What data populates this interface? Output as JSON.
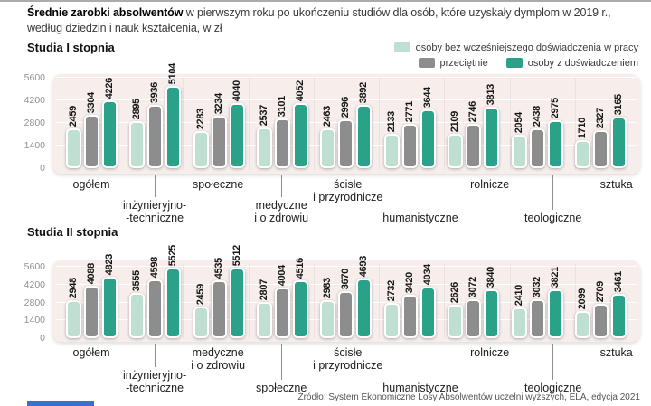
{
  "page": {
    "title_bold": "Średnie zarobki absolwentów",
    "title_rest": " w pierwszym roku po ukończeniu studiów dla osób, które uzyskały dymplom w 2019 r., według dziedzin i nauk kształcenia, w zł",
    "source": "Źródło: System Ekonomiczne Losy Absolwentów uczelni wyższych, ELA, edycja 2021"
  },
  "legend": [
    {
      "label": "osoby bez wcześniejszego doświadczenia w pracy",
      "color": "#bfdfd2"
    },
    {
      "label": "przeciętnie",
      "color": "#8d8d8d"
    },
    {
      "label": "osoby z doświadczeniem",
      "color": "#2aa189"
    }
  ],
  "colors": {
    "panel_background": "#f7eeec",
    "value_label": "#161616",
    "axis_text": "#919191"
  },
  "chart_data": [
    {
      "type": "bar",
      "title": "Studia I stopnia",
      "ylim": [
        0,
        5600
      ],
      "yticks": [
        0,
        1400,
        2800,
        4200,
        5600
      ],
      "grid": true,
      "legend_position": "top-right",
      "categories": [
        "ogółem",
        "inżynieryjno--techniczne",
        "społeczne",
        "medyczne i o zdrowiu",
        "ścisłe i przyrodnicze",
        "humanistyczne",
        "rolnicze",
        "teologiczne",
        "sztuka"
      ],
      "category_lines": [
        [
          "ogółem"
        ],
        [
          "inżynieryjno-",
          "-techniczne"
        ],
        [
          "społeczne"
        ],
        [
          "medyczne",
          "i o zdrowiu"
        ],
        [
          "ścisłe",
          "i przyrodnicze"
        ],
        [
          "humanistyczne"
        ],
        [
          "rolnicze"
        ],
        [
          "teologiczne"
        ],
        [
          "sztuka"
        ]
      ],
      "series": [
        {
          "name": "osoby bez wcześniejszego doświadczenia w pracy",
          "values": [
            2459,
            2895,
            2283,
            2537,
            2463,
            2133,
            2109,
            2054,
            1710
          ]
        },
        {
          "name": "przeciętnie",
          "values": [
            3304,
            3936,
            3234,
            3101,
            2996,
            2771,
            2746,
            2438,
            2327
          ]
        },
        {
          "name": "osoby z doświadczeniem",
          "values": [
            4226,
            5104,
            4040,
            4052,
            3892,
            3644,
            3813,
            2975,
            3165
          ]
        }
      ]
    },
    {
      "type": "bar",
      "title": "Studia II stopnia",
      "ylim": [
        0,
        5600
      ],
      "yticks": [
        0,
        1400,
        2800,
        4200,
        5600
      ],
      "grid": true,
      "legend_position": "top-right",
      "categories": [
        "ogółem",
        "inżynieryjno--techniczne",
        "medyczne i o zdrowiu",
        "społeczne",
        "ścisłe i przyrodnicze",
        "humanistyczne",
        "rolnicze",
        "teologiczne",
        "sztuka"
      ],
      "category_lines": [
        [
          "ogółem"
        ],
        [
          "inżynieryjno-",
          "-techniczne"
        ],
        [
          "medyczne",
          "i o zdrowiu"
        ],
        [
          "społeczne"
        ],
        [
          "ścisłe",
          "i przyrodnicze"
        ],
        [
          "humanistyczne"
        ],
        [
          "rolnicze"
        ],
        [
          "teologiczne"
        ],
        [
          "sztuka"
        ]
      ],
      "series": [
        {
          "name": "osoby bez wcześniejszego doświadczenia w pracy",
          "values": [
            2948,
            3555,
            2459,
            2807,
            2983,
            2732,
            2626,
            2410,
            2099
          ]
        },
        {
          "name": "przeciętnie",
          "values": [
            4088,
            4598,
            4535,
            4004,
            3670,
            3420,
            3072,
            3032,
            2709
          ]
        },
        {
          "name": "osoby z doświadczeniem",
          "values": [
            4823,
            5525,
            5512,
            4516,
            4693,
            4034,
            3840,
            3821,
            3461
          ]
        }
      ]
    }
  ]
}
